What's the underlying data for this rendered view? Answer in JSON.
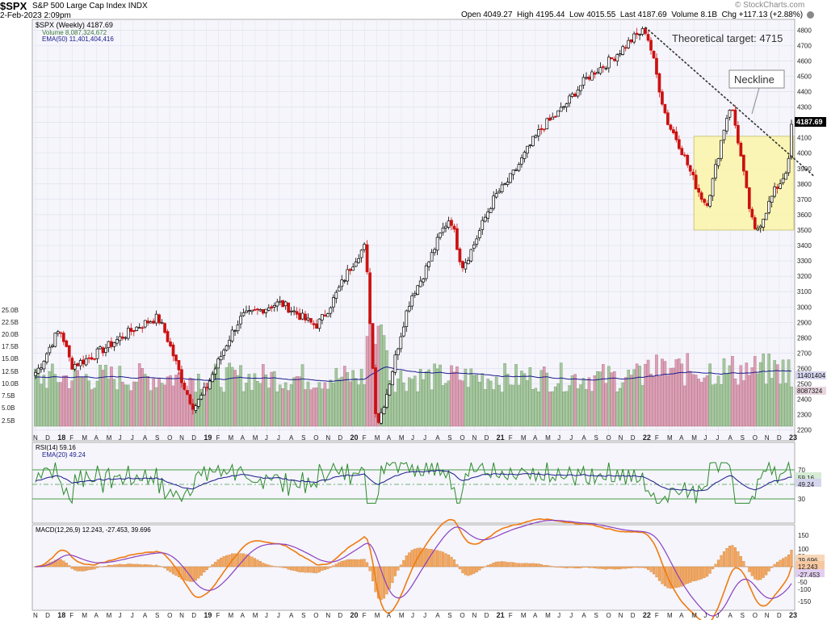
{
  "header": {
    "symbol": "$SPX",
    "name": "S&P 500 Large Cap Index",
    "exchange": "INDX",
    "date": "2-Feb-2023 2:09pm",
    "open_label": "Open",
    "open": "4049.27",
    "high_label": "High",
    "high": "4195.44",
    "low_label": "Low",
    "low": "4015.55",
    "last_label": "Last",
    "last": "4187.69",
    "volume_label": "Volume",
    "volume": "8.1B",
    "chg_label": "Chg",
    "chg": "+117.13 (+2.88%)",
    "watermark": "© StockCharts.com"
  },
  "legend": {
    "price": "$SPX (Weekly) 4187.69",
    "volume": "Volume 8,087,324,672",
    "ema": "EMA(50) 11,401,404,416"
  },
  "annotations": {
    "target": "Theoretical target: 4715",
    "neckline": "Neckline"
  },
  "rsi_panel": {
    "label": "RSI(14) 59.16",
    "ema_label": "EMA(20) 49.24",
    "right_labels": [
      "70",
      "59.16",
      "49.24",
      "30"
    ]
  },
  "macd_panel": {
    "label": "MACD(12,26,9) 12.243, -27.453, 39.696",
    "right_labels": [
      "150",
      "100",
      "50",
      "39.696",
      "12.243",
      "-27.453",
      "-50",
      "-100",
      "-150"
    ]
  },
  "colors": {
    "up": "#000000",
    "down": "#cc1111",
    "vol_up": "#a7c7a0",
    "vol_down": "#dba0b4",
    "ema": "#1a1a8c",
    "rsi": "#2e8b2e",
    "macd": "#f07a10",
    "signal": "#8a3fbf",
    "box": "#fbf6a8"
  },
  "chart_data": [
    {
      "type": "line",
      "title": "$SPX S&P 500 Large Cap Index INDX (Weekly)",
      "approximate_close_path": {
        "x": [
          "Nov 2017",
          "Jan 2018",
          "Feb 2018",
          "Sep 2018",
          "Dec 2018",
          "Apr 2019",
          "Jul 2019",
          "Oct 2019",
          "Feb 2020",
          "Mar 2020",
          "Jun 2020",
          "Sep 2020",
          "Oct 2020",
          "Jan 2021",
          "May 2021",
          "Sep 2021",
          "Jan 2022",
          "Mar 2022",
          "Jun 2022",
          "Aug 2022",
          "Oct 2022",
          "Dec 2022",
          "Feb 2023"
        ],
        "y": [
          2575,
          2850,
          2620,
          2930,
          2350,
          2940,
          3025,
          2880,
          3390,
          2240,
          3100,
          3580,
          3270,
          3750,
          4200,
          4540,
          4800,
          4170,
          3670,
          4310,
          3490,
          3800,
          4187.69
        ]
      },
      "y_ticks": [
        2200,
        2300,
        2400,
        2500,
        2600,
        2700,
        2800,
        2900,
        3000,
        3100,
        3200,
        3300,
        3400,
        3500,
        3600,
        3700,
        3800,
        3900,
        4000,
        4100,
        4200,
        4300,
        4400,
        4500,
        4600,
        4700,
        4800
      ],
      "x_ticks": [
        "N",
        "D",
        "18",
        "F",
        "M",
        "A",
        "M",
        "J",
        "J",
        "A",
        "S",
        "O",
        "N",
        "D",
        "19",
        "F",
        "M",
        "A",
        "M",
        "J",
        "J",
        "A",
        "S",
        "O",
        "N",
        "D",
        "20",
        "F",
        "M",
        "A",
        "M",
        "J",
        "J",
        "A",
        "S",
        "O",
        "N",
        "D",
        "21",
        "F",
        "M",
        "A",
        "M",
        "J",
        "J",
        "A",
        "S",
        "O",
        "N",
        "D",
        "22",
        "F",
        "M",
        "A",
        "M",
        "J",
        "J",
        "A",
        "S",
        "O",
        "N",
        "D",
        "23"
      ],
      "last_value": "4187.69",
      "volume_ticks": [
        "25.0B",
        "22.5B",
        "20.0B",
        "17.5B",
        "15.0B",
        "12.5B",
        "10.0B",
        "7.5B",
        "5.0B",
        "2.5B"
      ],
      "volume_right_labels": [
        "11401404",
        "8087324"
      ],
      "consolidation_box": {
        "y_low": 3500,
        "y_high": 4110,
        "x_start": "May 2022",
        "x_end": "Feb 2023"
      },
      "trendline": {
        "from": {
          "x": "Jan 2022",
          "y": 4820
        },
        "to": {
          "x": "Feb 2023",
          "y": 3850
        }
      }
    },
    {
      "type": "line",
      "title": "RSI(14)",
      "y_ticks": [
        30,
        70
      ],
      "last": 59.16,
      "ema": 49.24
    },
    {
      "type": "line",
      "title": "MACD(12,26,9)",
      "y_ticks": [
        -150,
        -100,
        -50,
        50,
        100,
        150
      ],
      "macd": 12.243,
      "signal": -27.453,
      "histogram": 39.696
    }
  ]
}
